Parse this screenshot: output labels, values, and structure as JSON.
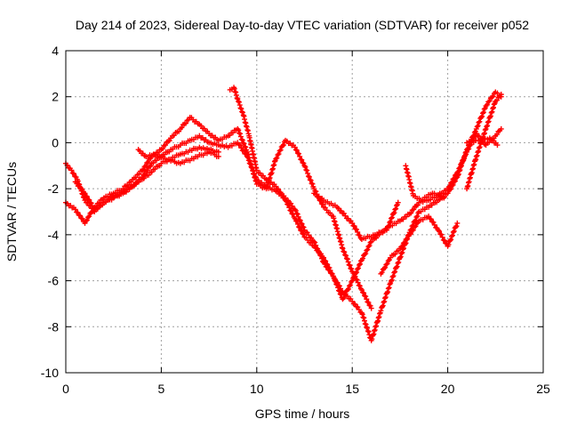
{
  "chart_data": {
    "type": "scatter",
    "title": "Day 214 of 2023, Sidereal Day-to-day VTEC variation (SDTVAR) for receiver p052",
    "xlabel": "GPS time / hours",
    "ylabel": "SDTVAR / TECUs",
    "xlim": [
      0,
      25
    ],
    "ylim": [
      -10,
      4
    ],
    "xticks": [
      "0",
      "5",
      "10",
      "15",
      "20",
      "25"
    ],
    "yticks": [
      "4",
      "2",
      "0",
      "-2",
      "-4",
      "-6",
      "-8",
      "-10"
    ],
    "grid": true,
    "marker": "+",
    "color": "#ff0000",
    "series": [
      {
        "x": [
          0.0,
          0.3,
          0.6,
          1.0,
          1.5,
          2.0,
          2.5,
          3.0,
          3.5,
          4.0,
          4.5,
          5.0,
          5.5,
          6.0,
          6.5,
          7.0,
          7.5,
          8.0,
          8.5,
          9.0,
          9.5,
          10.0,
          10.5,
          11.0,
          11.5,
          12.0,
          12.5,
          13.0,
          13.5,
          14.0,
          14.5,
          15.0,
          15.5,
          16.0,
          16.5,
          17.0,
          17.5,
          18.0,
          18.5,
          19.0,
          19.5,
          20.0,
          20.5,
          21.0,
          21.5,
          22.0,
          22.5,
          22.8
        ],
        "y": [
          -0.9,
          -1.2,
          -1.6,
          -2.5,
          -3.0,
          -2.6,
          -2.4,
          -2.2,
          -1.9,
          -1.5,
          -0.9,
          -0.6,
          -0.3,
          -0.1,
          0.1,
          0.3,
          0.0,
          -0.1,
          -0.2,
          0.0,
          -0.6,
          -1.6,
          -1.9,
          -2.1,
          -2.4,
          -2.9,
          -3.8,
          -4.3,
          -5.2,
          -5.8,
          -6.5,
          -6.9,
          -7.4,
          -8.6,
          -7.3,
          -6.1,
          -5.0,
          -3.9,
          -3.0,
          -2.8,
          -2.5,
          -2.2,
          -1.5,
          -0.3,
          0.6,
          1.6,
          2.2,
          2.0
        ]
      },
      {
        "x": [
          0.0,
          0.5,
          1.0,
          1.5,
          2.0,
          2.5,
          3.0,
          3.5,
          4.0,
          4.5,
          5.0,
          5.5,
          6.0,
          6.5,
          7.0,
          7.5,
          8.0,
          8.5,
          9.0,
          9.5,
          10.0,
          10.5,
          11.0,
          11.5,
          12.0,
          12.5,
          13.0,
          13.5,
          14.0,
          14.5,
          15.0,
          15.5,
          16.0,
          16.5,
          17.0,
          17.5,
          18.0,
          18.5,
          19.0,
          19.5,
          20.0,
          20.5,
          21.0,
          21.5,
          22.0,
          22.5,
          22.8
        ],
        "y": [
          -2.6,
          -2.9,
          -3.5,
          -2.8,
          -2.4,
          -2.2,
          -2.0,
          -1.6,
          -1.2,
          -0.6,
          -0.3,
          0.2,
          0.6,
          1.1,
          0.8,
          0.4,
          0.1,
          0.3,
          0.6,
          -0.4,
          -1.8,
          -2.0,
          -0.7,
          0.1,
          -0.2,
          -1.0,
          -2.0,
          -2.8,
          -3.2,
          -4.6,
          -5.6,
          -6.4,
          -7.2,
          -5.7,
          -5.0,
          -4.6,
          -4.0,
          -3.4,
          -3.2,
          -3.8,
          -4.5,
          -3.5,
          -2.0,
          -0.6,
          0.6,
          1.8,
          2.1
        ]
      },
      {
        "x": [
          0.5,
          1.0,
          1.5,
          2.0,
          3.0,
          4.0,
          5.0,
          6.0,
          7.0,
          8.0,
          8.6,
          8.8,
          9.0,
          9.3,
          9.6,
          10.0,
          10.5,
          11.0,
          11.5,
          12.0,
          12.5,
          13.0,
          13.5,
          14.0,
          14.5,
          15.0,
          15.5,
          16.0,
          16.5,
          17.0,
          17.5,
          18.0,
          18.5,
          19.0,
          19.5,
          20.0,
          20.5,
          21.0,
          21.5,
          22.0,
          22.5,
          22.8
        ],
        "y": [
          -1.7,
          -2.2,
          -2.9,
          -2.6,
          -2.1,
          -1.6,
          -0.9,
          -0.5,
          -0.2,
          -0.4,
          2.3,
          2.4,
          1.9,
          1.2,
          0.3,
          -1.2,
          -1.6,
          -1.9,
          -2.5,
          -3.3,
          -4.1,
          -4.5,
          -5.0,
          -5.8,
          -6.8,
          -6.0,
          -5.1,
          -4.3,
          -3.9,
          -3.6,
          -3.4,
          -3.1,
          -2.6,
          -2.5,
          -2.3,
          -2.0,
          -1.3,
          -0.4,
          0.4,
          -0.1,
          0.3,
          0.6
        ]
      },
      {
        "x": [
          3.8,
          4.2,
          4.6,
          5.2,
          6.0,
          7.5,
          8.0,
          13.0,
          13.5,
          14.2,
          15.0,
          15.5,
          16.2,
          16.8,
          17.4,
          17.8,
          18.2,
          18.6,
          19.2,
          19.8,
          21.0,
          21.6,
          22.2,
          22.6
        ],
        "y": [
          -0.3,
          -0.6,
          -0.5,
          -0.7,
          -0.9,
          -0.4,
          -0.6,
          -2.2,
          -2.5,
          -2.8,
          -3.5,
          -4.2,
          -4.0,
          -3.8,
          -2.6,
          -1.0,
          -2.3,
          -2.5,
          -2.2,
          -2.4,
          0.0,
          0.1,
          0.2,
          -0.1
        ]
      }
    ]
  }
}
